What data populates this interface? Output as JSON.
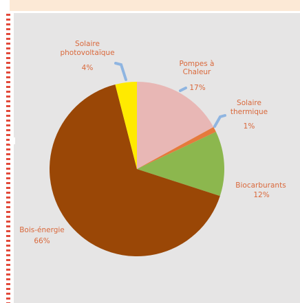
{
  "header": {
    "text": ""
  },
  "chart_data": {
    "type": "pie",
    "title": "",
    "slices": [
      {
        "label_lines": [
          "Pompes à",
          "Chaleur"
        ],
        "value": 17,
        "value_label": "17%",
        "color": "#e8b7b5"
      },
      {
        "label_lines": [
          "Solaire",
          "thermique"
        ],
        "value": 1,
        "value_label": "1%",
        "color": "#e57a3c"
      },
      {
        "label_lines": [
          "Biocarburants"
        ],
        "value": 12,
        "value_label": "12%",
        "color": "#8cb74e"
      },
      {
        "label_lines": [
          "Bois-énergie"
        ],
        "value": 66,
        "value_label": "66%",
        "color": "#9a4706"
      },
      {
        "label_lines": [
          "Solaire",
          "photovoltaïque"
        ],
        "value": 4,
        "value_label": "4%",
        "color": "#ffea00"
      }
    ],
    "start": "top",
    "direction": "clockwise",
    "leader_color": "#8fb5e1"
  }
}
